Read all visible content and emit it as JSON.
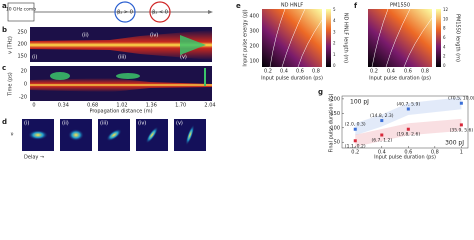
{
  "panel_a": {
    "letter": "a",
    "source": "10 GHz comb",
    "loop1": "β₂ > 0",
    "loop2": "β₂ < 0"
  },
  "panel_b": {
    "letter": "b",
    "ylabel": "ν (THz)",
    "yticks": [
      "250",
      "200",
      "150"
    ],
    "stages": [
      "(i)",
      "(ii)",
      "(iii)",
      "(iv)",
      "(v)"
    ]
  },
  "panel_c": {
    "letter": "c",
    "ylabel": "Time (ps)",
    "yticks": [
      "20",
      "0",
      "-20"
    ],
    "xticks": [
      "0",
      "0.34",
      "0.68",
      "1.02",
      "1.36",
      "1.70",
      "2.04"
    ],
    "xlabel": "Propagation distance (m)"
  },
  "panel_d": {
    "letter": "d",
    "ylabel": "ν",
    "xlabel": "Delay →",
    "frames": [
      "(i)",
      "(ii)",
      "(iii)",
      "(iv)",
      "(v)"
    ]
  },
  "panel_e": {
    "letter": "e",
    "title": "ND HNLF",
    "ylabel": "Input pulse energy (pJ)",
    "xlabel": "Input pulse duration (ps)",
    "yticks": [
      "400",
      "300",
      "200",
      "100"
    ],
    "xticks": [
      "0.2",
      "0.4",
      "0.6",
      "0.8"
    ],
    "cbar_label": "ND HNLF length (m)",
    "cbar_ticks": [
      "5",
      "4",
      "3",
      "2",
      "1",
      "0"
    ]
  },
  "panel_f": {
    "letter": "f",
    "title": "PM1550",
    "xlabel": "Input pulse duration (ps)",
    "xticks": [
      "0.2",
      "0.4",
      "0.6",
      "0.8"
    ],
    "cbar_label": "PM1550 length (m)",
    "cbar_ticks": [
      "12",
      "10",
      "8",
      "6",
      "4",
      "2",
      "0"
    ]
  },
  "panel_g": {
    "letter": "g",
    "ylabel": "Final pulse duration (fs)",
    "xlabel": "Input pulse duration (ps)",
    "xlim": [
      0.1,
      1.05
    ],
    "ylim": [
      30,
      210
    ],
    "xticks": [
      0.2,
      0.4,
      0.6,
      0.8,
      1
    ],
    "yticks": [
      50,
      100,
      150,
      200
    ],
    "series": [
      {
        "name": "100 pJ",
        "color": "#3a6fd8",
        "x": [
          0.2,
          0.4,
          0.6,
          1
        ],
        "values": [
          95,
          125,
          165,
          185
        ],
        "point_labels": [
          "(2.0, 0.3)",
          "(14.8, 2.3)",
          "(40.7, 5.9)",
          "(70.5, 10.0)"
        ]
      },
      {
        "name": "300 pJ",
        "color": "#d8283a",
        "x": [
          0.2,
          0.4,
          0.6,
          1
        ],
        "values": [
          55,
          75,
          95,
          110
        ],
        "point_labels": [
          "(1.1, 0.2)",
          "(6.7, 1.2)",
          "(19.8, 2.6)",
          "(35.9, 5.6)"
        ]
      }
    ]
  }
}
